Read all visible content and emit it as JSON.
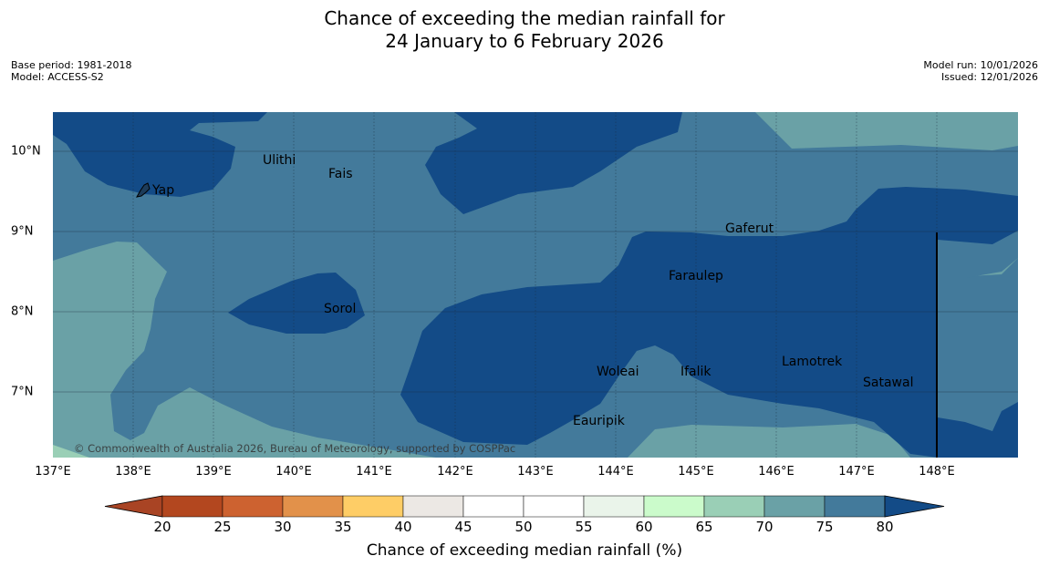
{
  "title": {
    "line1": "Chance of exceeding the median rainfall for",
    "line2": "24 January to 6 February 2026"
  },
  "meta": {
    "base_period": "Base period: 1981-2018",
    "model": "Model: ACCESS-S2",
    "model_run": "Model run: 10/01/2026",
    "issued": "Issued: 12/01/2026"
  },
  "map": {
    "copyright": "© Commonwealth of Australia 2026, Bureau of Meteorology, supported by COSPPac",
    "lon_labels": [
      "137°E",
      "138°E",
      "139°E",
      "140°E",
      "141°E",
      "142°E",
      "143°E",
      "144°E",
      "145°E",
      "146°E",
      "147°E",
      "148°E"
    ],
    "lat_labels": [
      "10°N",
      "9°N",
      "8°N",
      "7°N"
    ],
    "places": [
      "Yap",
      "Ulithi",
      "Fais",
      "Gaferut",
      "Faraulep",
      "Sorol",
      "Woleai",
      "Ifalik",
      "Lamotrek",
      "Satawal",
      "Eauripik"
    ]
  },
  "colors": {
    "c70_75": "#6aa1a6",
    "c75_80": "#437a9b",
    "c80_plus": "#134b87",
    "c65_70": "#9acfb6"
  },
  "colorbar": {
    "title": "Chance of exceeding median rainfall (%)",
    "ticks": [
      "20",
      "25",
      "30",
      "35",
      "40",
      "45",
      "50",
      "55",
      "60",
      "65",
      "70",
      "75",
      "80"
    ],
    "colors": [
      "#a94424",
      "#b3471f",
      "#cd6230",
      "#e2914a",
      "#fecd66",
      "#ece8e4",
      "#ffffff",
      "#ffffff",
      "#eaf4ea",
      "#cbfbcb",
      "#9acfb6",
      "#6aa1a6",
      "#437a9b",
      "#134b87"
    ]
  }
}
